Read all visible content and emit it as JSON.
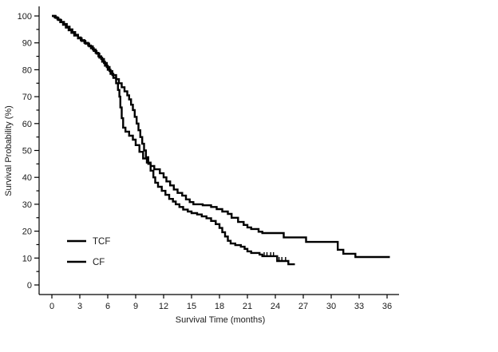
{
  "colors": {
    "line": "#000000",
    "text": "#1a1a1a",
    "background": "#ffffff"
  },
  "chart_data": {
    "type": "line",
    "variant": "kaplan-meier-step",
    "title": "",
    "xlabel": "Survival Time (months)",
    "ylabel": "Survival Probability (%)",
    "xlim": [
      0,
      37.3
    ],
    "ylim": [
      0,
      100
    ],
    "x_ticks": [
      0,
      3,
      6,
      9,
      12,
      15,
      18,
      21,
      24,
      27,
      30,
      33,
      36
    ],
    "y_ticks": [
      0,
      10,
      20,
      30,
      40,
      50,
      60,
      70,
      80,
      90,
      100
    ],
    "y_minor_tick_step": 5,
    "grid": false,
    "legend_position": "lower-left",
    "series": [
      {
        "name": "TCF",
        "color": "#000000",
        "points": [
          [
            0,
            100
          ],
          [
            0.4,
            99.3
          ],
          [
            0.7,
            98.5
          ],
          [
            1.0,
            97.8
          ],
          [
            1.3,
            97
          ],
          [
            1.6,
            96
          ],
          [
            1.9,
            95
          ],
          [
            2.2,
            94
          ],
          [
            2.5,
            93
          ],
          [
            2.8,
            92
          ],
          [
            3.1,
            91
          ],
          [
            3.5,
            90
          ],
          [
            3.9,
            89
          ],
          [
            4.2,
            88
          ],
          [
            4.5,
            87
          ],
          [
            4.8,
            86
          ],
          [
            5.1,
            84.5
          ],
          [
            5.4,
            83
          ],
          [
            5.7,
            81.5
          ],
          [
            6.0,
            80
          ],
          [
            6.3,
            78.5
          ],
          [
            6.6,
            77
          ],
          [
            6.9,
            75
          ],
          [
            7.1,
            72.5
          ],
          [
            7.25,
            70
          ],
          [
            7.35,
            66
          ],
          [
            7.5,
            62
          ],
          [
            7.65,
            58.5
          ],
          [
            7.9,
            57
          ],
          [
            8.3,
            55.5
          ],
          [
            8.7,
            54
          ],
          [
            9.0,
            52
          ],
          [
            9.4,
            49.5
          ],
          [
            9.8,
            47
          ],
          [
            10.2,
            45.5
          ],
          [
            10.6,
            44.2
          ],
          [
            11.0,
            43
          ],
          [
            11.6,
            41.5
          ],
          [
            12.0,
            40
          ],
          [
            12.3,
            38.5
          ],
          [
            12.7,
            37
          ],
          [
            13.1,
            35.5
          ],
          [
            13.5,
            34.2
          ],
          [
            14.0,
            33.2
          ],
          [
            14.4,
            31.8
          ],
          [
            14.8,
            30.8
          ],
          [
            15.2,
            30
          ],
          [
            16.2,
            29.6
          ],
          [
            17.1,
            29
          ],
          [
            17.7,
            28.2
          ],
          [
            18.3,
            27.3
          ],
          [
            18.9,
            26.4
          ],
          [
            19.3,
            25
          ],
          [
            20.0,
            23.4
          ],
          [
            20.6,
            22.3
          ],
          [
            21.0,
            21.4
          ],
          [
            21.4,
            20.8
          ],
          [
            22.2,
            19.8
          ],
          [
            22.6,
            19.3
          ],
          [
            24.9,
            17.7
          ],
          [
            27.3,
            16.0
          ],
          [
            30.7,
            13.1
          ],
          [
            31.3,
            11.6
          ],
          [
            32.6,
            10.4
          ],
          [
            36.3,
            10.4
          ]
        ],
        "censor_marks": []
      },
      {
        "name": "CF",
        "color": "#000000",
        "points": [
          [
            0,
            100
          ],
          [
            0.3,
            99.5
          ],
          [
            0.6,
            98.7
          ],
          [
            0.9,
            97.7
          ],
          [
            1.2,
            96.7
          ],
          [
            1.5,
            95.7
          ],
          [
            1.8,
            94.7
          ],
          [
            2.1,
            93.7
          ],
          [
            2.4,
            92.7
          ],
          [
            2.8,
            91.7
          ],
          [
            3.2,
            90.7
          ],
          [
            3.6,
            89.7
          ],
          [
            4.0,
            88.7
          ],
          [
            4.4,
            87.5
          ],
          [
            4.7,
            86.3
          ],
          [
            5.0,
            85
          ],
          [
            5.3,
            84
          ],
          [
            5.6,
            82.5
          ],
          [
            5.9,
            81
          ],
          [
            6.2,
            79.5
          ],
          [
            6.5,
            78
          ],
          [
            6.9,
            76.5
          ],
          [
            7.2,
            75
          ],
          [
            7.5,
            73.5
          ],
          [
            7.8,
            72
          ],
          [
            8.1,
            70.5
          ],
          [
            8.3,
            69
          ],
          [
            8.5,
            67
          ],
          [
            8.7,
            65
          ],
          [
            8.9,
            62.5
          ],
          [
            9.1,
            60
          ],
          [
            9.3,
            57.5
          ],
          [
            9.5,
            55
          ],
          [
            9.7,
            52.5
          ],
          [
            9.9,
            50
          ],
          [
            10.1,
            47.5
          ],
          [
            10.35,
            45
          ],
          [
            10.6,
            42.5
          ],
          [
            10.9,
            40
          ],
          [
            11.1,
            38
          ],
          [
            11.4,
            36.5
          ],
          [
            11.8,
            35
          ],
          [
            12.2,
            33.5
          ],
          [
            12.6,
            32
          ],
          [
            13.0,
            31
          ],
          [
            13.3,
            30
          ],
          [
            13.7,
            29
          ],
          [
            14.1,
            28
          ],
          [
            14.6,
            27.3
          ],
          [
            15.0,
            26.7
          ],
          [
            15.6,
            26.2
          ],
          [
            16.1,
            25.5
          ],
          [
            16.6,
            24.8
          ],
          [
            17.1,
            23.8
          ],
          [
            17.6,
            22.6
          ],
          [
            18.0,
            21.2
          ],
          [
            18.3,
            19.6
          ],
          [
            18.6,
            18.0
          ],
          [
            18.9,
            16.4
          ],
          [
            19.2,
            15.4
          ],
          [
            19.7,
            14.8
          ],
          [
            20.3,
            14.2
          ],
          [
            20.7,
            13.4
          ],
          [
            21.0,
            12.5
          ],
          [
            21.4,
            11.9
          ],
          [
            22.3,
            11.3
          ],
          [
            22.6,
            10.7
          ],
          [
            24.2,
            8.9
          ],
          [
            25.4,
            7.7
          ],
          [
            26.1,
            7.7
          ]
        ],
        "censor_marks": [
          [
            22.8,
            10.7
          ],
          [
            23.1,
            10.7
          ],
          [
            23.5,
            10.7
          ],
          [
            23.8,
            10.7
          ],
          [
            24.4,
            8.9
          ],
          [
            24.7,
            8.9
          ],
          [
            25.1,
            8.9
          ]
        ]
      }
    ]
  }
}
